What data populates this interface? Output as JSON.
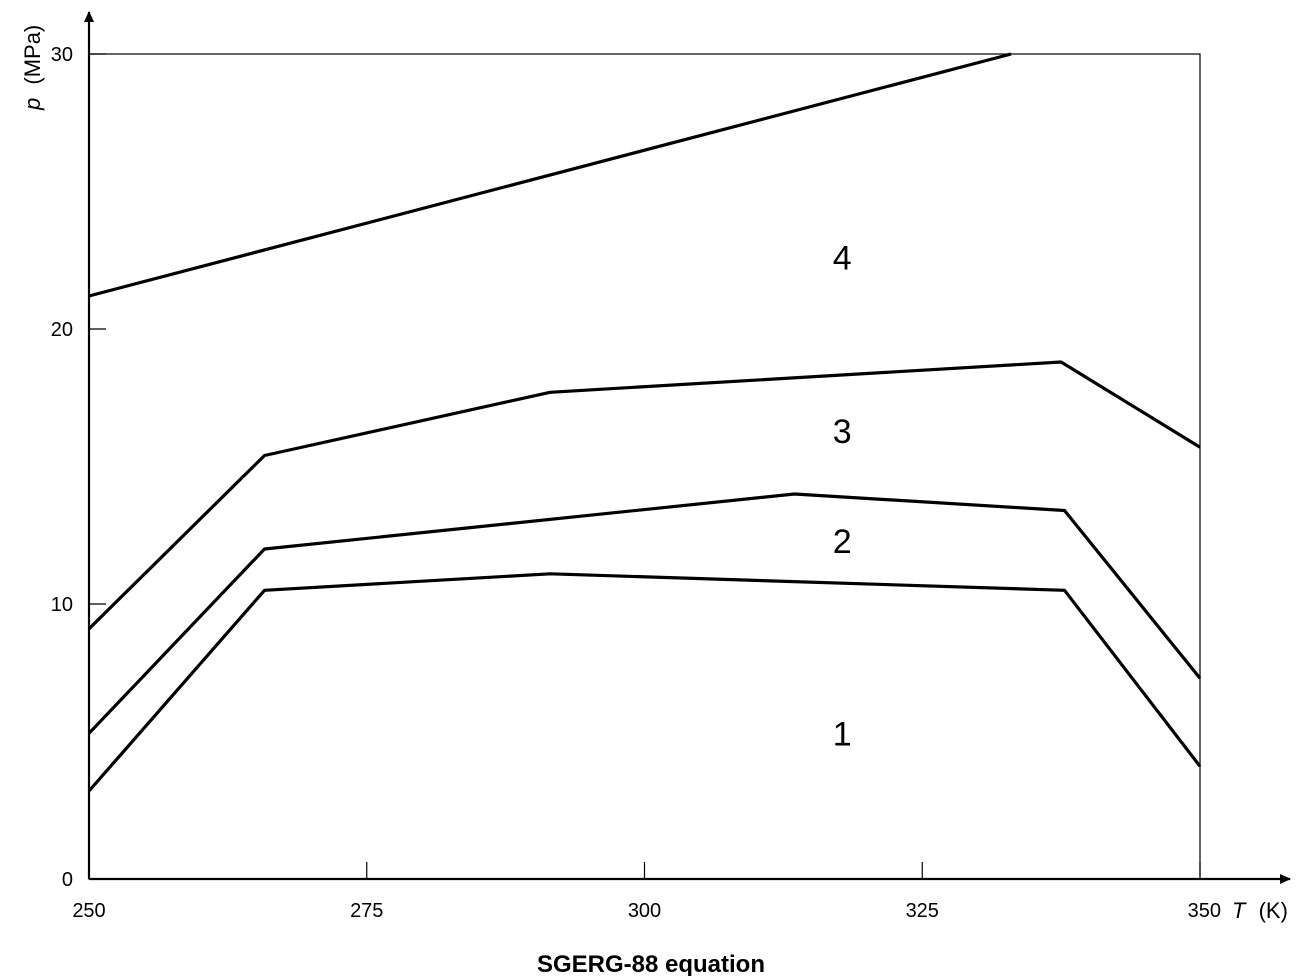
{
  "chart_data": {
    "type": "line",
    "caption": "SGERG-88 equation",
    "xlabel": {
      "var": "T",
      "unit": "(K)"
    },
    "ylabel": {
      "var": "p",
      "unit": "(MPa)"
    },
    "xlim": [
      250,
      350
    ],
    "ylim": [
      0,
      30
    ],
    "xticks": [
      250,
      275,
      300,
      325,
      350
    ],
    "yticks": [
      0,
      10,
      20,
      30
    ],
    "xtick_labels": [
      "250",
      "275",
      "300",
      "325",
      "350"
    ],
    "ytick_labels": [
      "0",
      "10",
      "20",
      "30"
    ],
    "grid": false,
    "legend": "none",
    "series": [
      {
        "x": [
          250,
          265.8,
          291.5,
          337.8,
          350
        ],
        "y": [
          3.2,
          10.5,
          11.1,
          10.5,
          4.1
        ]
      },
      {
        "x": [
          250,
          265.8,
          313.5,
          337.8,
          350
        ],
        "y": [
          5.3,
          12.0,
          14.0,
          13.4,
          7.3
        ]
      },
      {
        "x": [
          250,
          265.8,
          291.5,
          337.5,
          350
        ],
        "y": [
          9.1,
          15.4,
          17.7,
          18.8,
          15.7
        ]
      },
      {
        "x": [
          250,
          333
        ],
        "y": [
          21.2,
          30.0
        ]
      }
    ],
    "region_labels": [
      {
        "text": "1",
        "x": 317.8,
        "y": 5.3
      },
      {
        "text": "2",
        "x": 317.8,
        "y": 12.3
      },
      {
        "text": "3",
        "x": 317.8,
        "y": 16.3
      },
      {
        "text": "4",
        "x": 317.8,
        "y": 22.6
      }
    ]
  }
}
